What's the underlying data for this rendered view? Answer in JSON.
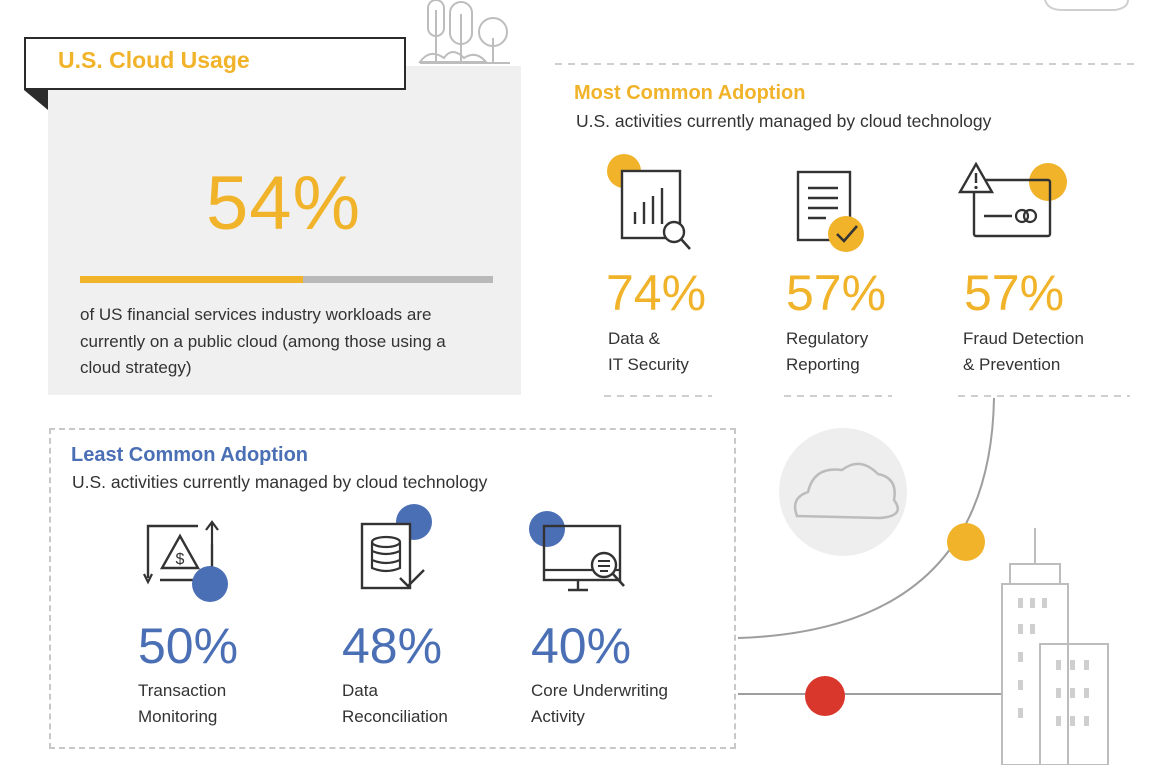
{
  "usage": {
    "title": "U.S. Cloud Usage",
    "percent": "54%",
    "fill_fraction": 0.54,
    "description": "of US financial services industry workloads are currently on a public cloud (among those using a cloud strategy)"
  },
  "most_common": {
    "title": "Most Common Adoption",
    "subtitle": "U.S. activities currently managed by cloud technology",
    "items": [
      {
        "value": "74%",
        "line1": "Data &",
        "line2": "IT Security",
        "icon": "security-analytics-icon"
      },
      {
        "value": "57%",
        "line1": "Regulatory",
        "line2": "Reporting",
        "icon": "document-check-icon"
      },
      {
        "value": "57%",
        "line1": "Fraud Detection",
        "line2": "& Prevention",
        "icon": "credit-card-warning-icon"
      }
    ]
  },
  "least_common": {
    "title": "Least Common Adoption",
    "subtitle": "U.S. activities currently managed by cloud technology",
    "items": [
      {
        "value": "50%",
        "line1": "Transaction",
        "line2": "Monitoring",
        "icon": "transaction-warning-icon"
      },
      {
        "value": "48%",
        "line1": "Data",
        "line2": "Reconciliation",
        "icon": "database-check-icon"
      },
      {
        "value": "40%",
        "line1": "Core Underwriting",
        "line2": "Activity",
        "icon": "monitor-search-icon"
      }
    ]
  },
  "colors": {
    "accent_yellow": "#f0b32a",
    "accent_blue": "#4a6fb5",
    "accent_red": "#d9372b",
    "text": "#333333",
    "panel_gray": "#f0f0f0"
  }
}
